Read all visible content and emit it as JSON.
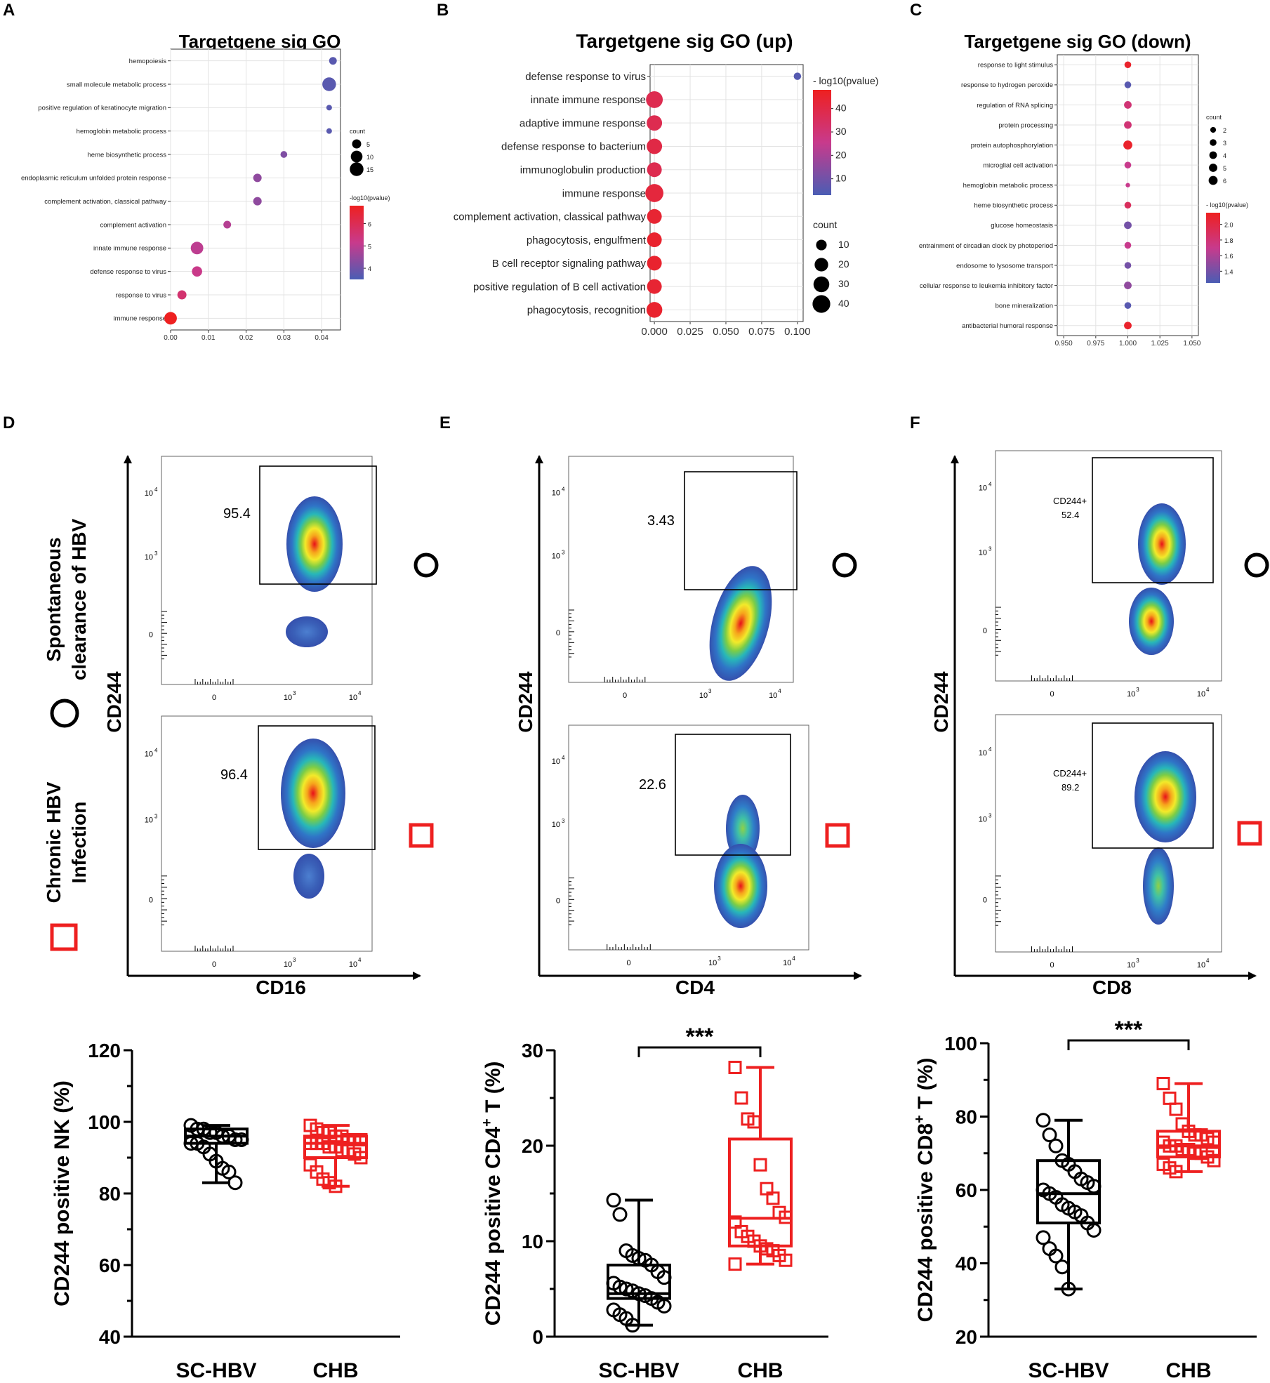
{
  "panel_letters": [
    "A",
    "B",
    "C",
    "D",
    "E",
    "F"
  ],
  "colors": {
    "sig_high": "#ee2020",
    "sig_mid": "#c83a8c",
    "sig_low": "#4a5db4",
    "sc_hbv": "#000000",
    "chb": "#ee2020"
  },
  "chart_data": [
    {
      "id": "A",
      "type": "scatter",
      "title": "Targetgene sig GO",
      "xticks": [
        "0.00",
        "0.01",
        "0.02",
        "0.03",
        "0.04"
      ],
      "xlim": [
        0,
        0.045
      ],
      "terms": [
        "hemopoiesis",
        "small molecule metabolic process",
        "positive regulation of keratinocyte migration",
        "hemoglobin metabolic process",
        "heme biosynthetic process",
        "endoplasmic reticulum unfolded protein response",
        "complement activation, classical pathway",
        "complement activation",
        "innate immune response",
        "defense response to virus",
        "response to virus",
        "immune response"
      ],
      "x": [
        0.043,
        0.042,
        0.042,
        0.042,
        0.03,
        0.023,
        0.023,
        0.015,
        0.007,
        0.007,
        0.003,
        0.0
      ],
      "count": [
        3,
        15,
        1,
        1,
        2,
        4,
        4,
        3,
        12,
        7,
        5,
        12
      ],
      "neglog10p": [
        3.7,
        3.7,
        3.7,
        3.7,
        4.2,
        4.4,
        4.4,
        4.9,
        5.0,
        5.2,
        5.6,
        6.8
      ],
      "size_legend": {
        "title": "count",
        "labels": [
          "5",
          "10",
          "15"
        ],
        "values": [
          5,
          10,
          15
        ]
      },
      "color_legend": {
        "title": "-log10(pvalue)",
        "labels": [
          "6",
          "5",
          "4"
        ],
        "values": [
          6,
          5,
          4
        ],
        "range": [
          3.5,
          6.8
        ]
      }
    },
    {
      "id": "B",
      "type": "scatter",
      "title": "Targetgene sig GO (up)",
      "xticks": [
        "0.000",
        "0.025",
        "0.050",
        "0.075",
        "0.100"
      ],
      "xlim": [
        -0.003,
        0.104
      ],
      "terms": [
        "defense response to virus",
        "innate immune response",
        "adaptive immune response",
        "defense response to bacterium",
        "immunoglobulin production",
        "immune response",
        "complement activation, classical pathway",
        "phagocytosis, engulfment",
        "B cell receptor signaling pathway",
        "positive regulation of B cell activation",
        "phagocytosis, recognition"
      ],
      "x": [
        0.1,
        0,
        0,
        0,
        0,
        0,
        0,
        0,
        0,
        0,
        0
      ],
      "count": [
        3,
        35,
        28,
        28,
        25,
        42,
        25,
        25,
        25,
        25,
        30
      ],
      "neglog10p": [
        5,
        38,
        38,
        40,
        38,
        42,
        44,
        45,
        45,
        44,
        45
      ],
      "size_legend": {
        "title": "count",
        "labels": [
          "10",
          "20",
          "30",
          "40"
        ],
        "values": [
          10,
          20,
          30,
          40
        ]
      },
      "color_legend": {
        "title": "- log10(pvalue)",
        "labels": [
          "40",
          "30",
          "20",
          "10"
        ],
        "values": [
          40,
          30,
          20,
          10
        ],
        "range": [
          3,
          48
        ]
      }
    },
    {
      "id": "C",
      "type": "scatter",
      "title": "Targetgene sig GO (down)",
      "xticks": [
        "0.950",
        "0.975",
        "1.000",
        "1.025",
        "1.050"
      ],
      "xlim": [
        0.945,
        1.055
      ],
      "terms": [
        "response to light stimulus",
        "response to hydrogen peroxide",
        "regulation of RNA splicing",
        "protein processing",
        "protein autophosphorylation",
        "microglial cell activation",
        "hemoglobin metabolic process",
        "heme biosynthetic process",
        "glucose homeostasis",
        "entrainment of circadian clock by photoperiod",
        "endosome to lysosome transport",
        "cellular response to leukemia inhibitory factor",
        "bone mineralization",
        "antibacterial humoral response"
      ],
      "x": [
        1,
        1,
        1,
        1,
        1,
        1,
        1,
        1,
        1,
        1,
        1,
        1,
        1,
        1
      ],
      "count": [
        3,
        3,
        4,
        4,
        6,
        3,
        1,
        3,
        4,
        3,
        3,
        4,
        3,
        4
      ],
      "neglog10p": [
        2.1,
        1.3,
        1.8,
        1.8,
        2.1,
        1.7,
        1.7,
        1.9,
        1.4,
        1.7,
        1.4,
        1.5,
        1.3,
        2.1
      ],
      "size_legend": {
        "title": "count",
        "labels": [
          "2",
          "3",
          "4",
          "5",
          "6"
        ],
        "values": [
          2,
          3,
          4,
          5,
          6
        ]
      },
      "color_legend": {
        "title": "- log10(pvalue)",
        "labels": [
          "2.0",
          "1.8",
          "1.6",
          "1.4"
        ],
        "values": [
          2.0,
          1.8,
          1.6,
          1.4
        ],
        "range": [
          1.25,
          2.15
        ]
      }
    },
    {
      "id": "D_bottom",
      "type": "box",
      "ylabel": "CD244 positive NK (%)",
      "ylim": [
        40,
        120
      ],
      "yticks": [
        "40",
        "60",
        "80",
        "100",
        "120"
      ],
      "ytick_values": [
        40,
        60,
        80,
        100,
        120
      ],
      "categories": [
        "SC-HBV",
        "CHB"
      ],
      "series": [
        {
          "name": "SC-HBV",
          "marker": "circle",
          "min": 83,
          "q1": 94,
          "median": 96,
          "q3": 98,
          "max": 99,
          "points": [
            99,
            98,
            98,
            97,
            97,
            96,
            96,
            95,
            95,
            94,
            94,
            93,
            91,
            89,
            87,
            86,
            83
          ]
        },
        {
          "name": "CHB",
          "marker": "square",
          "min": 82,
          "q1": 90,
          "median": 94,
          "q3": 96,
          "max": 99,
          "points": [
            99,
            98,
            97,
            97,
            96,
            96,
            95,
            95,
            95,
            94,
            94,
            94,
            93,
            93,
            92,
            92,
            91,
            90,
            88,
            86,
            84,
            83,
            82
          ]
        }
      ],
      "significance": ""
    },
    {
      "id": "E_bottom",
      "type": "box",
      "ylabel": "CD244 positive CD4+ T (%)",
      "ylim": [
        0,
        30
      ],
      "yticks": [
        "0",
        "10",
        "20",
        "30"
      ],
      "ytick_values": [
        0,
        10,
        20,
        30
      ],
      "categories": [
        "SC-HBV",
        "CHB"
      ],
      "series": [
        {
          "name": "SC-HBV",
          "marker": "circle",
          "min": 1.2,
          "q1": 4.0,
          "median": 4.5,
          "q3": 7.5,
          "max": 14.3,
          "points": [
            14.3,
            12.8,
            9.0,
            8.5,
            8.2,
            8.0,
            7.5,
            6.8,
            6.2,
            5.6,
            5.2,
            5.0,
            4.8,
            4.5,
            4.3,
            4.0,
            3.6,
            3.2,
            2.8,
            2.3,
            1.9,
            1.2
          ]
        },
        {
          "name": "CHB",
          "marker": "square",
          "min": 7.6,
          "q1": 9.5,
          "median": 12.4,
          "q3": 20.7,
          "max": 28.2,
          "points": [
            28.2,
            25.0,
            22.8,
            22.5,
            18.0,
            15.5,
            14.5,
            13.0,
            12.5,
            12.0,
            11.0,
            10.5,
            10.0,
            9.5,
            9.2,
            9.0,
            8.5,
            8.0,
            7.6
          ]
        }
      ],
      "significance": "***"
    },
    {
      "id": "F_bottom",
      "type": "box",
      "ylabel": "CD244 positive CD8+ T (%)",
      "ylim": [
        20,
        100
      ],
      "yticks": [
        "20",
        "40",
        "60",
        "80",
        "100"
      ],
      "ytick_values": [
        20,
        40,
        60,
        80,
        100
      ],
      "categories": [
        "SC-HBV",
        "CHB"
      ],
      "series": [
        {
          "name": "SC-HBV",
          "marker": "circle",
          "min": 33,
          "q1": 51,
          "median": 59,
          "q3": 68,
          "max": 79,
          "points": [
            79,
            75,
            72,
            68,
            67,
            65,
            63,
            62,
            61,
            60,
            59,
            58,
            56,
            55,
            54,
            53,
            51,
            49,
            47,
            44,
            42,
            39,
            33
          ]
        },
        {
          "name": "CHB",
          "marker": "square",
          "min": 65,
          "q1": 69,
          "median": 72,
          "q3": 76,
          "max": 89,
          "points": [
            89,
            85,
            82,
            78,
            76,
            75,
            75,
            74,
            73,
            73,
            72,
            72,
            71,
            71,
            70,
            70,
            69,
            68,
            67,
            66,
            65
          ]
        }
      ],
      "significance": "***"
    }
  ],
  "flow": {
    "D": {
      "y_axis": "CD244",
      "x_axis": "CD16",
      "top": {
        "gate_value": "95.4"
      },
      "bottom": {
        "gate_value": "96.4"
      }
    },
    "E": {
      "y_axis": "CD244",
      "x_axis": "CD4",
      "top": {
        "gate_value": "3.43"
      },
      "bottom": {
        "gate_value": "22.6"
      }
    },
    "F": {
      "y_axis": "CD244",
      "x_axis": "CD8",
      "top": {
        "gate_label": "CD244+",
        "gate_value": "52.4"
      },
      "bottom": {
        "gate_label": "CD244+",
        "gate_value": "89.2"
      }
    },
    "tick_labels": {
      "t0": "0",
      "t3": "10",
      "t4": "10",
      "exp3": "3",
      "exp4": "4"
    },
    "row_labels": {
      "top_line1": "Spontaneous",
      "top_line2": "clearance of HBV",
      "bottom_line1": "Chronic HBV",
      "bottom_line2": "Infection"
    }
  }
}
